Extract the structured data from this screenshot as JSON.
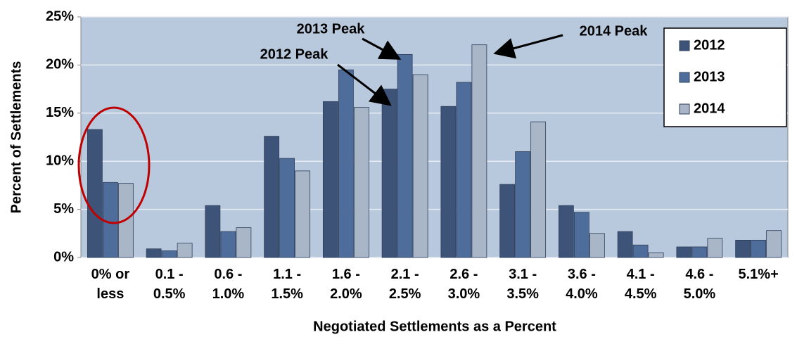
{
  "chart_data": {
    "type": "bar",
    "x_label": "Negotiated Settlements as a Percent",
    "y_label": "Percent of Settlements",
    "categories": [
      "0% or less",
      "0.1 - 0.5%",
      "0.6 - 1.0%",
      "1.1 - 1.5%",
      "1.6 - 2.0%",
      "2.1 - 2.5%",
      "2.6 - 3.0%",
      "3.1 - 3.5%",
      "3.6 - 4.0%",
      "4.1 - 4.5%",
      "4.6 - 5.0%",
      "5.1%+"
    ],
    "series": [
      {
        "name": "2012",
        "color": "#3d5478",
        "values": [
          13.3,
          0.9,
          5.4,
          12.6,
          16.2,
          17.5,
          15.7,
          7.6,
          5.4,
          2.7,
          1.1,
          1.8
        ]
      },
      {
        "name": "2013",
        "color": "#4f6d9b",
        "values": [
          7.8,
          0.7,
          2.7,
          10.3,
          19.5,
          21.1,
          18.2,
          11.0,
          4.7,
          1.3,
          1.1,
          1.8
        ]
      },
      {
        "name": "2014",
        "color": "#a9b6c8",
        "values": [
          7.7,
          1.5,
          3.1,
          9.0,
          15.6,
          19.0,
          22.1,
          14.1,
          2.5,
          0.5,
          2.0,
          2.8
        ]
      }
    ],
    "ylim": [
      0,
      25
    ],
    "yticks": [
      {
        "value": 0,
        "label": "0%"
      },
      {
        "value": 5,
        "label": "5%"
      },
      {
        "value": 10,
        "label": "10%"
      },
      {
        "value": 15,
        "label": "15%"
      },
      {
        "value": 20,
        "label": "20%"
      },
      {
        "value": 25,
        "label": "25%"
      }
    ],
    "grid": true,
    "legend": "upper right",
    "annotations": [
      "2013 Peak",
      "2012 Peak",
      "2014 Peak"
    ]
  }
}
